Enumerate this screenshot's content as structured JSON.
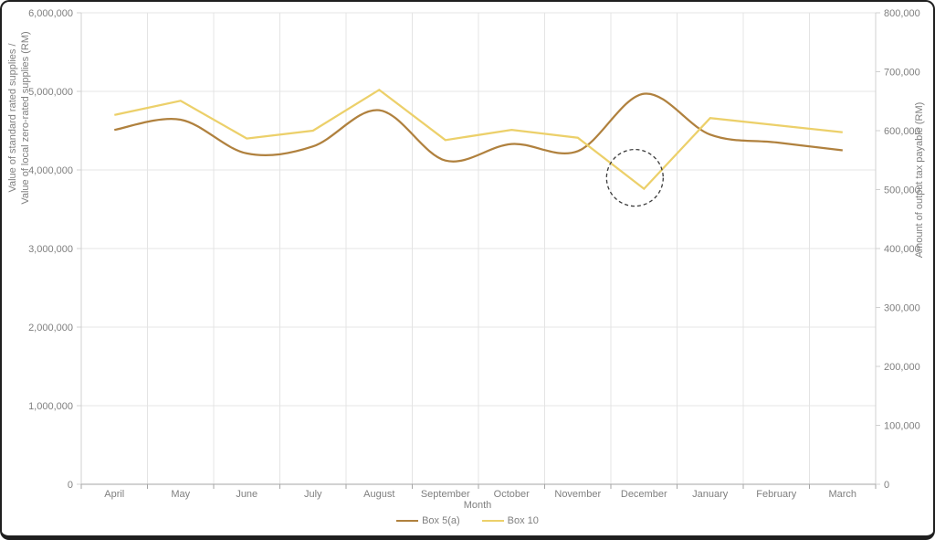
{
  "chart_data": {
    "type": "line",
    "title": "",
    "xlabel": "Month",
    "ylabel_left_line1": "Value of standard rated supplies /",
    "ylabel_left_line2": "Value of local zero-rated supplies (RM)",
    "ylabel_right": "Amount of output tax payable (RM)",
    "categories": [
      "April",
      "May",
      "June",
      "July",
      "August",
      "September",
      "October",
      "November",
      "December",
      "January",
      "February",
      "March"
    ],
    "series": [
      {
        "name": "Box 5(a)",
        "color": "#b0813e",
        "axis": "left",
        "smooth": true,
        "values": [
          4510000,
          4640000,
          4210000,
          4300000,
          4760000,
          4120000,
          4330000,
          4240000,
          4970000,
          4450000,
          4350000,
          4250000
        ]
      },
      {
        "name": "Box 10",
        "color": "#ecd06a",
        "axis": "left",
        "smooth": false,
        "values": [
          4700000,
          4880000,
          4400000,
          4500000,
          5020000,
          4380000,
          4510000,
          4410000,
          3760000,
          4660000,
          4570000,
          4480000
        ]
      }
    ],
    "left_axis": {
      "min": 0,
      "max": 6000000,
      "step": 1000000,
      "tick_labels": [
        "0",
        "1,000,000",
        "2,000,000",
        "3,000,000",
        "4,000,000",
        "5,000,000",
        "6,000,000"
      ]
    },
    "right_axis": {
      "min": 0,
      "max": 800000,
      "step": 100000,
      "tick_labels": [
        "0",
        "100,000",
        "200,000",
        "300,000",
        "400,000",
        "500,000",
        "600,000",
        "700,000",
        "800,000"
      ]
    },
    "grid": true,
    "legend_position": "bottom",
    "annotation": {
      "shape": "dashed-circle",
      "category": "December",
      "series": "Box 10",
      "value": 3900000,
      "note": "highlighted dip in Box 10 at December"
    }
  },
  "colors": {
    "gridline": "#e4e4e4",
    "plot_border": "#d0d0d0",
    "bottom_axis": "#a6a6a6",
    "tick_text": "#7f7f7f",
    "annotation_stroke": "#3a3a3a"
  }
}
